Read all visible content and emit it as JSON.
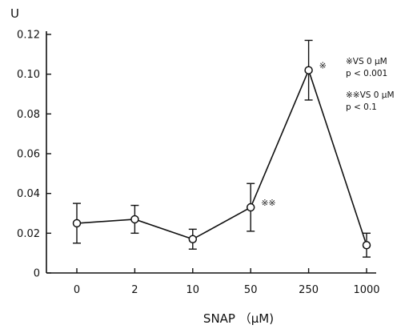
{
  "chart_data": {
    "type": "line",
    "title": "",
    "ylabel": "U",
    "xlabel": "SNAP （μM)",
    "ylim": [
      0,
      0.12
    ],
    "yticks": [
      "0",
      "0.02",
      "0.04",
      "0.06",
      "0.08",
      "0.10",
      "0.12"
    ],
    "categories": [
      "0",
      "2",
      "10",
      "50",
      "250",
      "1000"
    ],
    "series": [
      {
        "values": [
          0.025,
          0.027,
          0.017,
          0.033,
          0.102,
          0.014
        ],
        "errors": [
          0.01,
          0.007,
          0.005,
          0.012,
          0.015,
          0.006
        ]
      }
    ],
    "point_marks": [
      {
        "category": "50",
        "text": "※※"
      },
      {
        "category": "250",
        "text": "※"
      }
    ],
    "annotations": [
      "※VS 0 μM",
      "p < 0.001",
      "※※VS 0 μM",
      "p < 0.1"
    ],
    "grid": false,
    "marker": "open-circle",
    "colors": {
      "ink": "#111111",
      "marker_fill": "#ffffff"
    }
  }
}
